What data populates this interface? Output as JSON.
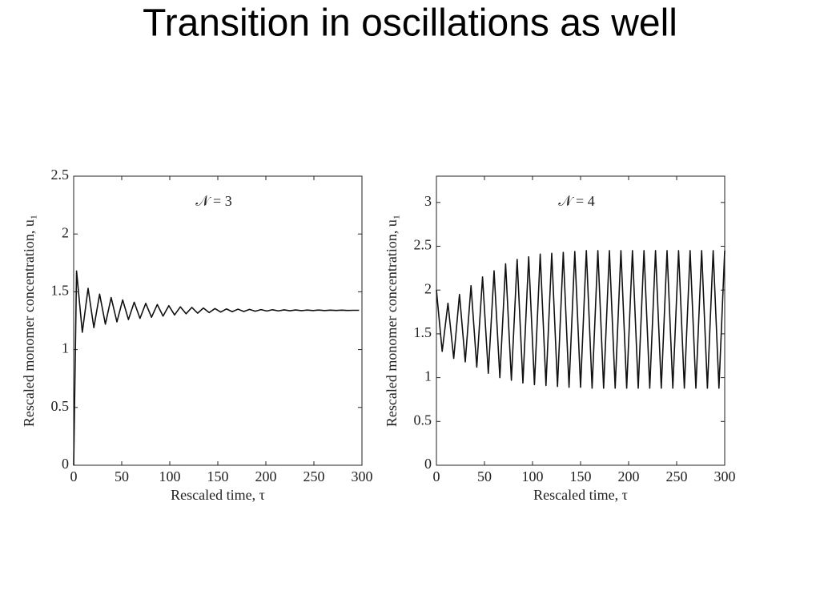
{
  "slide_title": "Transition in oscillations as well",
  "chart_data": [
    {
      "type": "line",
      "annotation": "𝒩 = 3",
      "xlabel": "Rescaled time, τ",
      "ylabel": "Rescaled monomer concentration, u₁",
      "color": "#111111",
      "xlim": [
        0,
        300
      ],
      "ylim": [
        0,
        2.5
      ],
      "xticks": [
        0,
        50,
        100,
        150,
        200,
        250,
        300
      ],
      "yticks": [
        0,
        0.5,
        1,
        1.5,
        2,
        2.5
      ],
      "x": [
        0,
        3,
        9,
        15,
        21,
        27,
        33,
        39,
        45,
        51,
        57,
        63,
        69,
        75,
        81,
        87,
        93,
        99,
        105,
        111,
        117,
        123,
        129,
        135,
        141,
        147,
        153,
        159,
        165,
        171,
        177,
        183,
        189,
        195,
        201,
        207,
        213,
        219,
        225,
        231,
        237,
        243,
        249,
        255,
        261,
        267,
        273,
        279,
        285,
        291,
        297
      ],
      "values": [
        0,
        1.68,
        1.15,
        1.53,
        1.19,
        1.48,
        1.22,
        1.45,
        1.24,
        1.43,
        1.26,
        1.41,
        1.27,
        1.4,
        1.28,
        1.39,
        1.29,
        1.38,
        1.3,
        1.37,
        1.31,
        1.365,
        1.315,
        1.36,
        1.32,
        1.355,
        1.325,
        1.352,
        1.328,
        1.35,
        1.33,
        1.348,
        1.332,
        1.346,
        1.334,
        1.345,
        1.335,
        1.344,
        1.336,
        1.343,
        1.337,
        1.342,
        1.338,
        1.342,
        1.338,
        1.341,
        1.339,
        1.341,
        1.339,
        1.34,
        1.34
      ]
    },
    {
      "type": "line",
      "annotation": "𝒩 = 4",
      "xlabel": "Rescaled time, τ",
      "ylabel": "Rescaled monomer concentration, u₁",
      "color": "#111111",
      "xlim": [
        0,
        300
      ],
      "ylim": [
        0,
        3.3
      ],
      "xticks": [
        0,
        50,
        100,
        150,
        200,
        250,
        300
      ],
      "yticks": [
        0,
        0.5,
        1,
        1.5,
        2,
        2.5,
        3
      ],
      "x": [
        0,
        6,
        12,
        18,
        24,
        30,
        36,
        42,
        48,
        54,
        60,
        66,
        72,
        78,
        84,
        90,
        96,
        102,
        108,
        114,
        120,
        126,
        132,
        138,
        144,
        150,
        156,
        162,
        168,
        174,
        180,
        186,
        192,
        198,
        204,
        210,
        216,
        222,
        228,
        234,
        240,
        246,
        252,
        258,
        264,
        270,
        276,
        282,
        288,
        294,
        300
      ],
      "values": [
        2.0,
        1.3,
        1.85,
        1.22,
        1.95,
        1.18,
        2.05,
        1.12,
        2.15,
        1.05,
        2.22,
        1.0,
        2.3,
        0.97,
        2.35,
        0.94,
        2.38,
        0.92,
        2.41,
        0.91,
        2.42,
        0.9,
        2.43,
        0.89,
        2.44,
        0.89,
        2.45,
        0.88,
        2.45,
        0.88,
        2.45,
        0.88,
        2.45,
        0.88,
        2.45,
        0.88,
        2.45,
        0.88,
        2.45,
        0.88,
        2.45,
        0.88,
        2.45,
        0.88,
        2.45,
        0.88,
        2.45,
        0.88,
        2.45,
        0.88,
        2.45
      ]
    }
  ]
}
